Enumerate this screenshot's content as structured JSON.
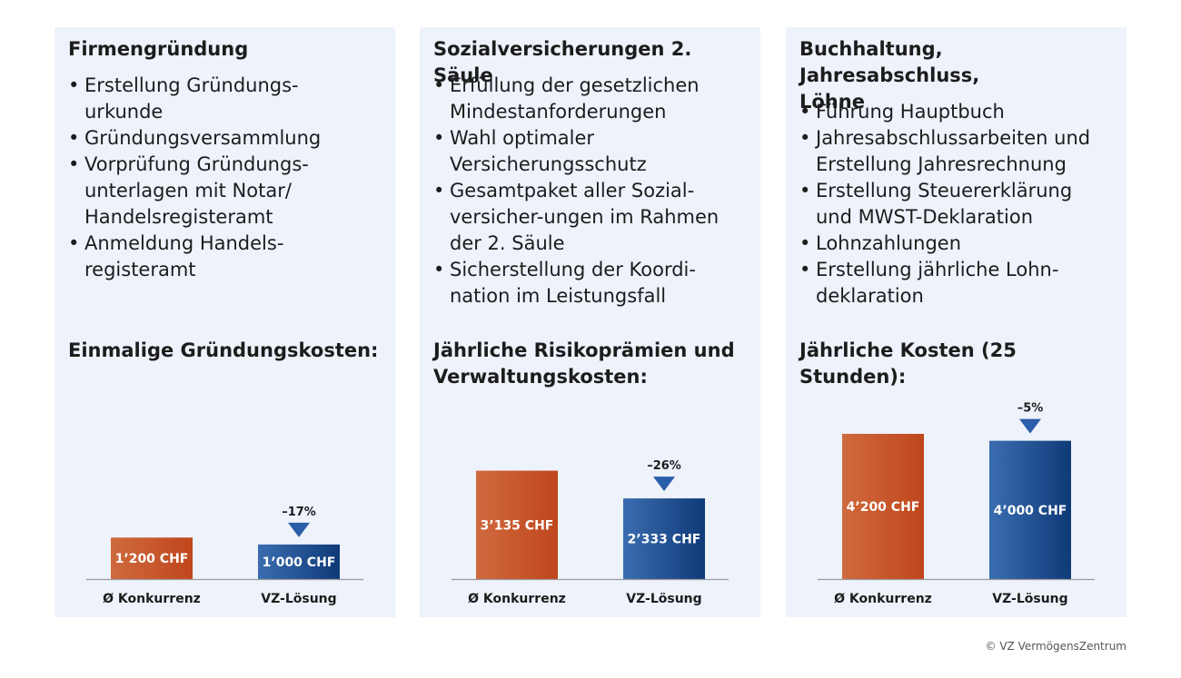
{
  "colors": {
    "panel_bg": "#eef2fb",
    "competitor_bar": "#c0461c",
    "vz_bar": "#1d4e92",
    "delta_marker": "#2a5ea8",
    "axis": "#9a9a9a"
  },
  "panels": [
    {
      "title": "Firmengründung",
      "bullets": [
        "Erstellung Gründungs-\nurkunde",
        "Gründungsversammlung",
        "Vorprüfung Gründungs-\nunterlagen mit Notar/\nHandelsregisteramt",
        "Anmeldung Handels-\nregisteramt"
      ],
      "cost_title": "Einmalige Gründungskosten:"
    },
    {
      "title": "Sozialversicherungen 2. Säule",
      "bullets": [
        "Erfüllung der gesetzlichen\nMindestanforderungen",
        "Wahl optimaler\nVersicherungsschutz",
        "Gesamtpaket aller Sozial-\nversicher-ungen im Rahmen\nder 2. Säule",
        "Sicherstellung der Koordi-\nnation im Leistungsfall"
      ],
      "cost_title": "Jährliche Risikoprämien und\nVerwaltungskosten:"
    },
    {
      "title": "Buchhaltung, Jahresabschluss,\nLöhne",
      "bullets": [
        "Führung Hauptbuch",
        "Jahresabschlussarbeiten und\nErstellung Jahresrechnung",
        "Erstellung Steuererklärung\nund MWST-Deklaration",
        "Lohnzahlungen",
        "Erstellung jährliche Lohn-\ndeklaration"
      ],
      "cost_title": "Jährliche Kosten (25 Stunden):"
    }
  ],
  "chart_data": [
    {
      "type": "bar",
      "title": "Einmalige Gründungskosten:",
      "categories": [
        "Ø Konkurrenz",
        "VZ-Lösung"
      ],
      "values": [
        1200,
        1000
      ],
      "value_labels": [
        "1’200 CHF",
        "1’000 CHF"
      ],
      "delta_label": "–17%",
      "unit": "CHF"
    },
    {
      "type": "bar",
      "title": "Jährliche Risikoprämien und Verwaltungskosten:",
      "categories": [
        "Ø Konkurrenz",
        "VZ-Lösung"
      ],
      "values": [
        3135,
        2333
      ],
      "value_labels": [
        "3’135 CHF",
        "2’333 CHF"
      ],
      "delta_label": "–26%",
      "unit": "CHF"
    },
    {
      "type": "bar",
      "title": "Jährliche Kosten (25 Stunden):",
      "categories": [
        "Ø Konkurrenz",
        "VZ-Lösung"
      ],
      "values": [
        4200,
        4000
      ],
      "value_labels": [
        "4’200 CHF",
        "4’000 CHF"
      ],
      "delta_label": "–5%",
      "unit": "CHF"
    }
  ],
  "footer": {
    "copyright": "© VZ VermögensZentrum"
  }
}
